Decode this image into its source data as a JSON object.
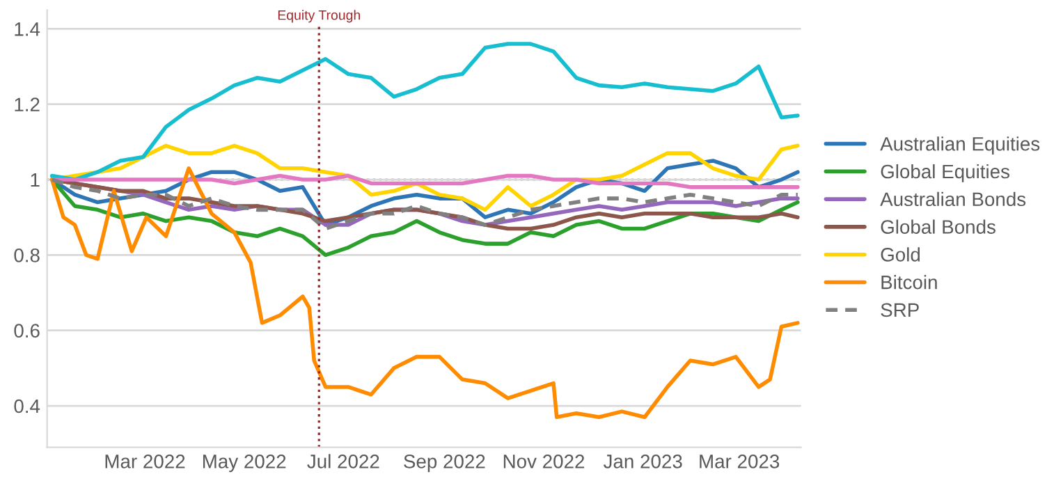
{
  "chart_data": {
    "type": "line",
    "x": [
      "2022-01-03",
      "2022-01-17",
      "2022-01-31",
      "2022-02-14",
      "2022-02-28",
      "2022-03-14",
      "2022-03-28",
      "2022-04-11",
      "2022-04-25",
      "2022-05-09",
      "2022-05-23",
      "2022-06-06",
      "2022-06-20",
      "2022-07-04",
      "2022-07-18",
      "2022-08-01",
      "2022-08-15",
      "2022-08-29",
      "2022-09-12",
      "2022-09-26",
      "2022-10-10",
      "2022-10-24",
      "2022-11-07",
      "2022-11-21",
      "2022-12-05",
      "2022-12-19",
      "2023-01-02",
      "2023-01-16",
      "2023-01-30",
      "2023-02-13",
      "2023-02-27",
      "2023-03-13",
      "2023-03-27",
      "2023-04-06"
    ],
    "series": [
      {
        "name": "Australian Equities",
        "color": "#2e75b6",
        "values": [
          1.0,
          0.96,
          0.94,
          0.95,
          0.96,
          0.97,
          1.0,
          1.02,
          1.02,
          1.0,
          0.97,
          0.98,
          0.88,
          0.9,
          0.93,
          0.95,
          0.96,
          0.95,
          0.95,
          0.9,
          0.92,
          0.91,
          0.94,
          0.98,
          1.0,
          0.99,
          0.97,
          1.03,
          1.04,
          1.05,
          1.03,
          0.98,
          1.0,
          1.02
        ]
      },
      {
        "name": "Global Equities",
        "color": "#2ca02c",
        "values": [
          1.0,
          0.93,
          0.92,
          0.9,
          0.91,
          0.89,
          0.9,
          0.89,
          0.86,
          0.85,
          0.87,
          0.85,
          0.8,
          0.82,
          0.85,
          0.86,
          0.89,
          0.86,
          0.84,
          0.83,
          0.83,
          0.86,
          0.85,
          0.88,
          0.89,
          0.87,
          0.87,
          0.89,
          0.91,
          0.91,
          0.9,
          0.89,
          0.92,
          0.94
        ]
      },
      {
        "name": "Australian Bonds",
        "color": "#9467bd",
        "values": [
          1.0,
          0.99,
          0.98,
          0.97,
          0.96,
          0.94,
          0.92,
          0.93,
          0.92,
          0.93,
          0.92,
          0.92,
          0.88,
          0.88,
          0.91,
          0.92,
          0.92,
          0.91,
          0.89,
          0.88,
          0.89,
          0.9,
          0.91,
          0.92,
          0.93,
          0.92,
          0.93,
          0.94,
          0.94,
          0.94,
          0.93,
          0.94,
          0.95,
          0.95
        ]
      },
      {
        "name": "Global Bonds",
        "color": "#8c564b",
        "values": [
          1.0,
          0.99,
          0.98,
          0.97,
          0.97,
          0.95,
          0.95,
          0.94,
          0.93,
          0.93,
          0.92,
          0.91,
          0.89,
          0.9,
          0.91,
          0.92,
          0.92,
          0.91,
          0.9,
          0.88,
          0.87,
          0.87,
          0.88,
          0.9,
          0.91,
          0.9,
          0.91,
          0.91,
          0.91,
          0.9,
          0.9,
          0.9,
          0.91,
          0.9
        ]
      },
      {
        "name": "Gold",
        "color": "#ffd400",
        "values": [
          1.0,
          1.01,
          1.02,
          1.03,
          1.06,
          1.09,
          1.07,
          1.07,
          1.09,
          1.07,
          1.03,
          1.03,
          1.02,
          1.01,
          0.96,
          0.97,
          0.99,
          0.96,
          0.95,
          0.92,
          0.98,
          0.93,
          0.96,
          1.0,
          1.0,
          1.01,
          1.04,
          1.07,
          1.07,
          1.03,
          1.01,
          1.0,
          1.08,
          1.09
        ]
      },
      {
        "color": "#17becf",
        "values": [
          1.01,
          1.0,
          1.02,
          1.05,
          1.06,
          1.14,
          1.185,
          1.215,
          1.25,
          1.27,
          1.26,
          1.29,
          1.32,
          1.28,
          1.27,
          1.22,
          1.24,
          1.27,
          1.28,
          1.35,
          1.36,
          1.36,
          1.34,
          1.27,
          1.25,
          1.245,
          1.255,
          1.245,
          1.24,
          1.235,
          1.255,
          1.3,
          1.165,
          1.17
        ]
      },
      {
        "color": "#e377c2",
        "values": [
          1.0,
          1.0,
          1.0,
          1.0,
          1.0,
          1.0,
          1.0,
          1.0,
          0.99,
          1.0,
          1.01,
          1.0,
          1.0,
          1.01,
          0.99,
          0.99,
          0.99,
          0.99,
          0.99,
          1.0,
          1.01,
          1.01,
          1.0,
          1.0,
          0.99,
          0.99,
          0.99,
          0.99,
          0.98,
          0.98,
          0.98,
          0.98,
          0.98,
          0.98
        ]
      },
      {
        "name": "Bitcoin",
        "color": "#ff8c00",
        "x": [
          "2022-01-03",
          "2022-01-10",
          "2022-01-17",
          "2022-01-24",
          "2022-01-31",
          "2022-02-10",
          "2022-02-21",
          "2022-03-02",
          "2022-03-14",
          "2022-03-28",
          "2022-04-11",
          "2022-04-25",
          "2022-05-05",
          "2022-05-12",
          "2022-05-23",
          "2022-06-06",
          "2022-06-10",
          "2022-06-13",
          "2022-06-20",
          "2022-07-04",
          "2022-07-18",
          "2022-08-01",
          "2022-08-15",
          "2022-08-29",
          "2022-09-12",
          "2022-09-26",
          "2022-10-10",
          "2022-10-24",
          "2022-11-07",
          "2022-11-09",
          "2022-11-21",
          "2022-12-05",
          "2022-12-19",
          "2023-01-02",
          "2023-01-16",
          "2023-01-30",
          "2023-02-13",
          "2023-02-27",
          "2023-03-13",
          "2023-03-20",
          "2023-03-27",
          "2023-04-06"
        ],
        "values": [
          1.0,
          0.9,
          0.88,
          0.8,
          0.79,
          0.97,
          0.81,
          0.9,
          0.85,
          1.03,
          0.91,
          0.86,
          0.78,
          0.62,
          0.64,
          0.69,
          0.66,
          0.52,
          0.45,
          0.45,
          0.43,
          0.5,
          0.53,
          0.53,
          0.47,
          0.46,
          0.42,
          0.44,
          0.46,
          0.37,
          0.38,
          0.37,
          0.385,
          0.37,
          0.45,
          0.52,
          0.51,
          0.53,
          0.45,
          0.47,
          0.61,
          0.62
        ]
      },
      {
        "name": "SRP",
        "color": "#808080",
        "line_style": "dashed",
        "values": [
          1.0,
          0.98,
          0.97,
          0.95,
          0.96,
          0.96,
          0.93,
          0.95,
          0.93,
          0.92,
          0.92,
          0.92,
          0.87,
          0.89,
          0.91,
          0.91,
          0.93,
          0.91,
          0.9,
          0.88,
          0.9,
          0.92,
          0.93,
          0.94,
          0.95,
          0.95,
          0.94,
          0.95,
          0.96,
          0.95,
          0.94,
          0.93,
          0.96,
          0.96
        ]
      }
    ],
    "xlim": [
      "2021-12-31",
      "2023-04-08"
    ],
    "xticks": [
      {
        "value": "2022-03-01",
        "label": "Mar 2022"
      },
      {
        "value": "2022-05-01",
        "label": "May 2022"
      },
      {
        "value": "2022-07-01",
        "label": "Jul 2022"
      },
      {
        "value": "2022-09-01",
        "label": "Sep 2022"
      },
      {
        "value": "2022-11-01",
        "label": "Nov 2022"
      },
      {
        "value": "2023-01-01",
        "label": "Jan 2023"
      },
      {
        "value": "2023-03-01",
        "label": "Mar 2023"
      }
    ],
    "ylim": [
      0.29,
      1.45
    ],
    "yticks": [
      0.4,
      0.6,
      0.8,
      1,
      1.2,
      1.4
    ],
    "ref_lines": [
      {
        "axis": "x",
        "value": "2022-06-16",
        "label": "Equity Trough",
        "color": "#a0282d",
        "line_style": "dotted"
      },
      {
        "axis": "y",
        "value": 1,
        "color": "#bfbfbf",
        "line_style": "dotted"
      }
    ],
    "grid": "y",
    "legend": "right",
    "line_style": "solid",
    "marker": "none"
  }
}
